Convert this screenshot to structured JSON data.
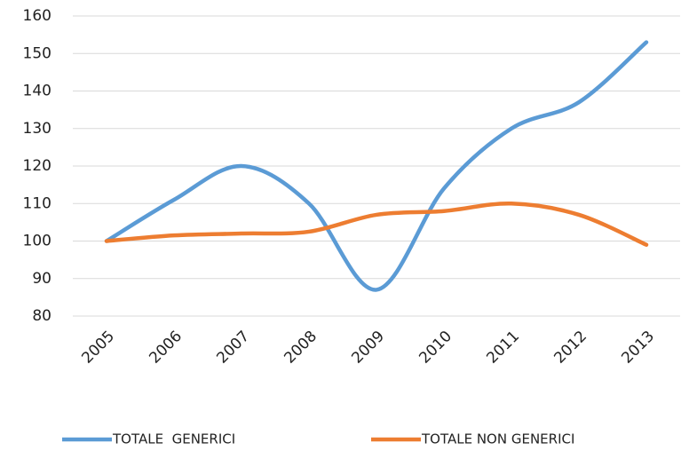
{
  "chart_data": {
    "type": "line",
    "categories": [
      "2005",
      "2006",
      "2007",
      "2008",
      "2009",
      "2010",
      "2011",
      "2012",
      "2013"
    ],
    "series": [
      {
        "name": "TOTALE  GENERICI",
        "color": "#5b9bd5",
        "values": [
          100,
          111,
          120,
          110,
          87,
          114,
          130,
          137,
          153
        ]
      },
      {
        "name": "TOTALE NON GENERICI",
        "color": "#ed7d31",
        "values": [
          100,
          101.5,
          102,
          102.5,
          107,
          108,
          110,
          107,
          99
        ]
      }
    ],
    "ylim": [
      80,
      160
    ],
    "yticks": [
      80,
      90,
      100,
      110,
      120,
      130,
      140,
      150,
      160
    ],
    "grid": true,
    "smooth": true,
    "legend": "bottom"
  }
}
